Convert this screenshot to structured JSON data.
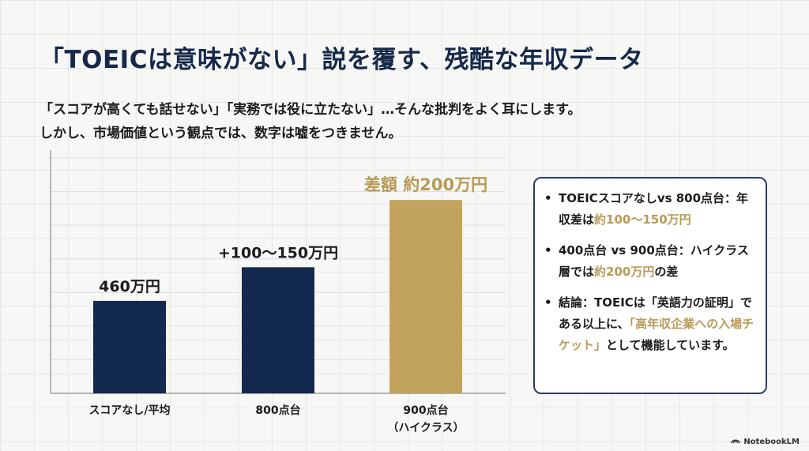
{
  "title": "「TOEICは意味がない」説を覆す、残酷な年収データ",
  "subtitle": {
    "line1": "「スコアが高くても話せない」「実務では役に立たない」…そんな批判をよく耳にします。",
    "line2": "しかし、市場価値という観点では、数字は嘘をつきません。"
  },
  "chart_data": {
    "type": "bar",
    "categories": [
      "スコアなし/平均",
      "800点台",
      "900点台\n（ハイクラス）"
    ],
    "values": [
      2.75,
      3.75,
      5.75
    ],
    "data_labels": [
      "460万円",
      "+100〜150万円",
      "差額 約200万円"
    ],
    "bar_colors": [
      "#132950",
      "#132950",
      "#c2a35e"
    ],
    "label_colors": [
      "#1b1b1b",
      "#1b1b1b",
      "#b89a56"
    ],
    "ylim": [
      0,
      7
    ],
    "grid": true,
    "xlabel": "",
    "ylabel": ""
  },
  "panel": {
    "bullet": "•",
    "items": [
      {
        "parts": [
          {
            "text": "TOEICスコアなしvs 800点台：年収差は",
            "hl": false
          },
          {
            "text": "約100〜150万円",
            "hl": true
          }
        ]
      },
      {
        "parts": [
          {
            "text": "400点台 vs 900点台：ハイクラス層では",
            "hl": false
          },
          {
            "text": "約200万円",
            "hl": true
          },
          {
            "text": "の差",
            "hl": false
          }
        ]
      },
      {
        "parts": [
          {
            "text": "結論：TOEICは「英語力の証明」である以上に、",
            "hl": false
          },
          {
            "text": "「高年収企業への入場チケット」",
            "hl": true
          },
          {
            "text": "として機能しています。",
            "hl": false
          }
        ]
      }
    ]
  },
  "colors": {
    "navy": "#132950",
    "gold": "#c2a35e",
    "panel_border": "#2a3d66"
  },
  "brand": "NotebookLM"
}
